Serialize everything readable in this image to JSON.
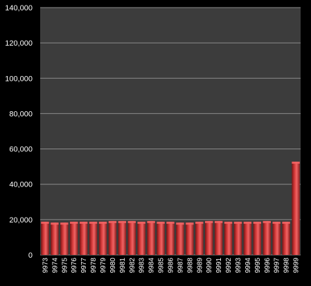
{
  "chart_data": {
    "type": "bar",
    "categories": [
      "9973",
      "9974",
      "9975",
      "9976",
      "9977",
      "9978",
      "9979",
      "9980",
      "9981",
      "9982",
      "9983",
      "9984",
      "9985",
      "9986",
      "9987",
      "9988",
      "9989",
      "9990",
      "9991",
      "9992",
      "9993",
      "9994",
      "9995",
      "9996",
      "9997",
      "9998",
      "9999"
    ],
    "values": [
      18800,
      18300,
      18300,
      18800,
      18800,
      18800,
      18800,
      19200,
      19200,
      19200,
      18800,
      19200,
      18800,
      18800,
      18300,
      18300,
      18800,
      19200,
      19200,
      18800,
      18800,
      18800,
      18800,
      19200,
      18800,
      18800,
      52800
    ],
    "title": "",
    "xlabel": "",
    "ylabel": "",
    "ylim": [
      0,
      140000
    ],
    "yticks": [
      "0",
      "20,000",
      "40,000",
      "60,000",
      "80,000",
      "100,000",
      "120,000",
      "140,000"
    ],
    "grid": true,
    "legend": "none",
    "colors": {
      "page_background": "#000000",
      "plot_background": "#3c3c3c",
      "gridline": "#8c8c8c",
      "bar_main": "#c83232",
      "bar_highlight": "#f06464",
      "bar_shadow": "#7a1414"
    }
  }
}
